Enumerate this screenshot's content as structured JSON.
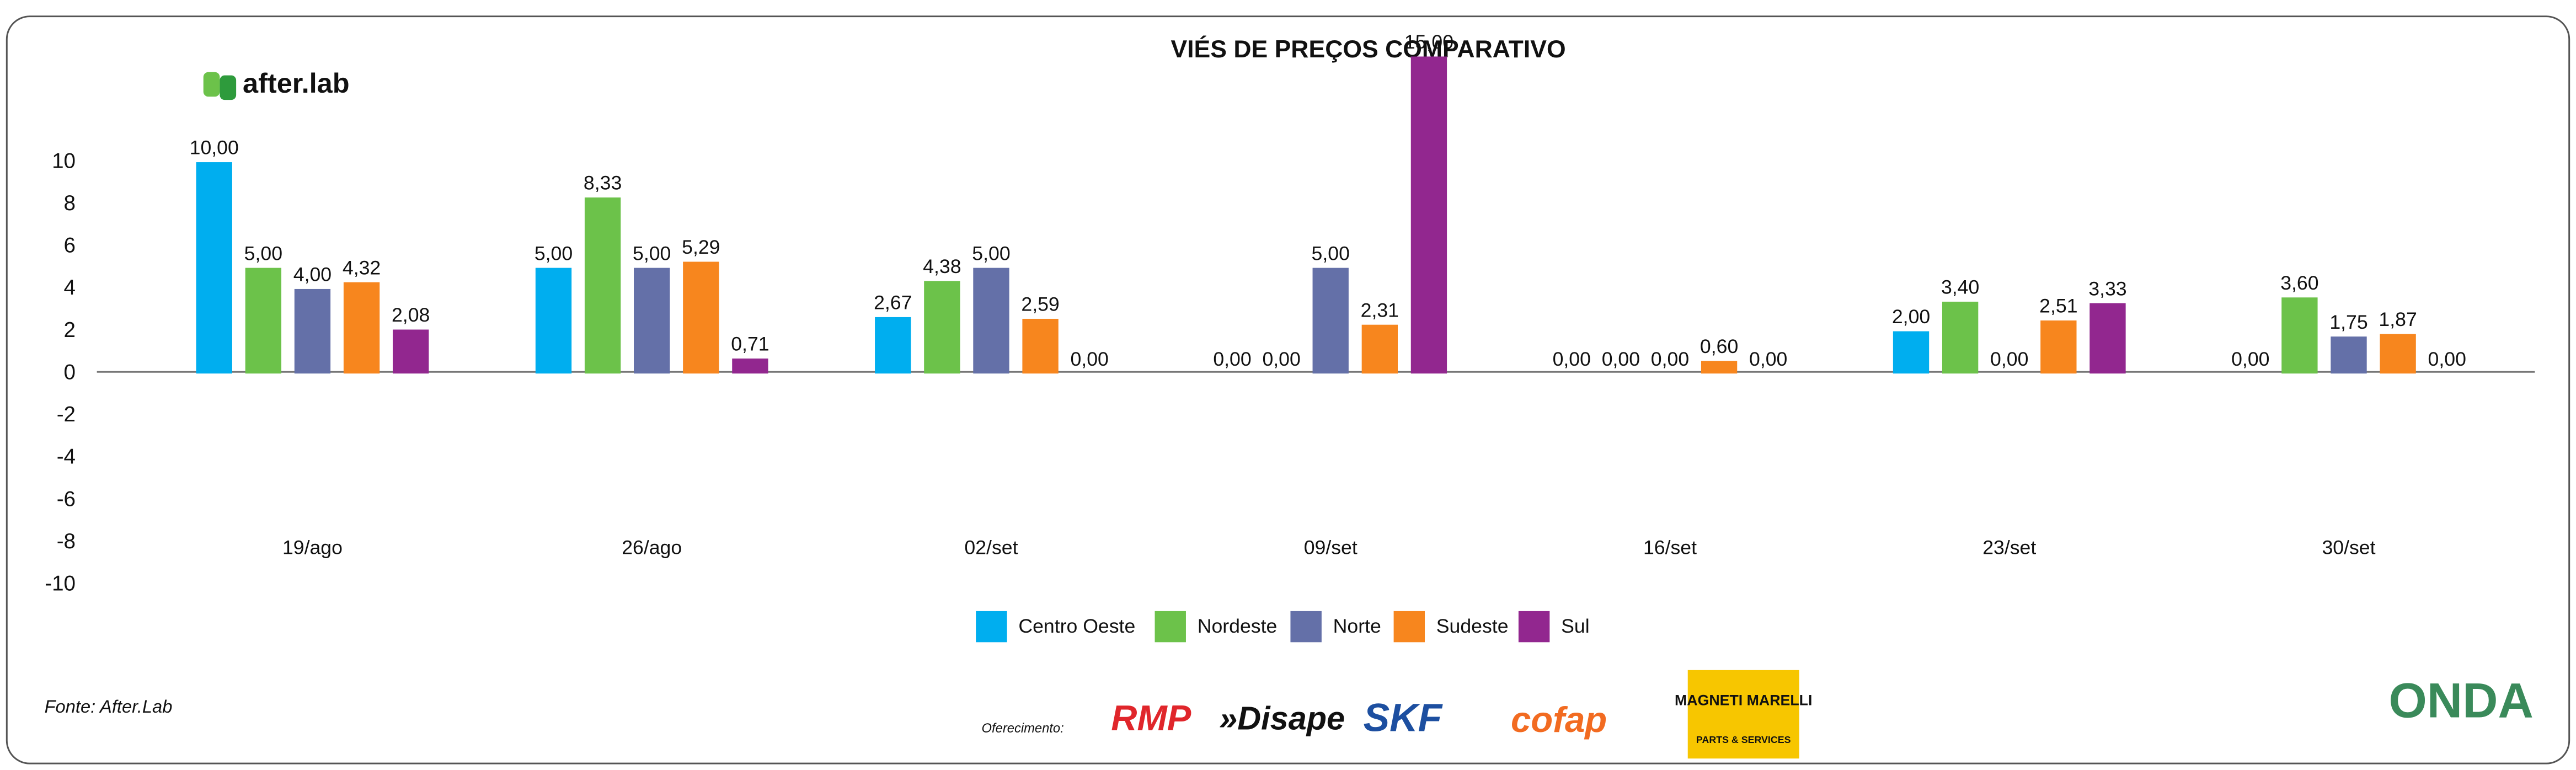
{
  "chart_data": {
    "type": "bar",
    "title": "VIÉS DE PREÇOS COMPARATIVO",
    "categories": [
      "19/ago",
      "26/ago",
      "02/set",
      "09/set",
      "16/set",
      "23/set",
      "30/set"
    ],
    "series": [
      {
        "name": "Centro Oeste",
        "color": "#00aeef",
        "values": [
          10,
          5,
          2.67,
          0,
          0,
          2,
          0
        ],
        "value_labels": [
          "10,00",
          "5,00",
          "2,67",
          "0,00",
          "0,00",
          "2,00",
          "0,00"
        ]
      },
      {
        "name": "Nordeste",
        "color": "#6cc24a",
        "values": [
          5,
          8.33,
          4.38,
          0,
          0,
          3.4,
          3.6
        ],
        "value_labels": [
          "5,00",
          "8,33",
          "4,38",
          "0,00",
          "0,00",
          "3,40",
          "3,60"
        ]
      },
      {
        "name": "Norte",
        "color": "#6470a8",
        "values": [
          4,
          5,
          5,
          5,
          0,
          0,
          1.75
        ],
        "value_labels": [
          "4,00",
          "5,00",
          "5,00",
          "5,00",
          "0,00",
          "0,00",
          "1,75"
        ]
      },
      {
        "name": "Sudeste",
        "color": "#f7861e",
        "values": [
          4.32,
          5.29,
          2.59,
          2.31,
          0.6,
          2.51,
          1.87
        ],
        "value_labels": [
          "4,32",
          "5,29",
          "2,59",
          "2,31",
          "0,60",
          "2,51",
          "1,87"
        ]
      },
      {
        "name": "Sul",
        "color": "#92278f",
        "values": [
          2.08,
          0.71,
          0,
          15,
          0,
          3.33,
          0
        ],
        "value_labels": [
          "2,08",
          "0,71",
          "0,00",
          "15,00",
          "0,00",
          "3,33",
          "0,00"
        ]
      }
    ],
    "ylim": [
      -10,
      10
    ],
    "yticks": [
      -10,
      -8,
      -6,
      -4,
      -2,
      0,
      2,
      4,
      6,
      8,
      10
    ],
    "grid": false,
    "legend": "bottom"
  },
  "brand": "after.lab",
  "footer": {
    "source": "Fonte: After.Lab",
    "sponsor_label": "Oferecimento:",
    "sponsors": [
      "RMP",
      "»Disape",
      "SKF",
      "cofap",
      "MAGNETI MARELLI",
      "PARTS & SERVICES"
    ],
    "partner": "ONDA"
  }
}
